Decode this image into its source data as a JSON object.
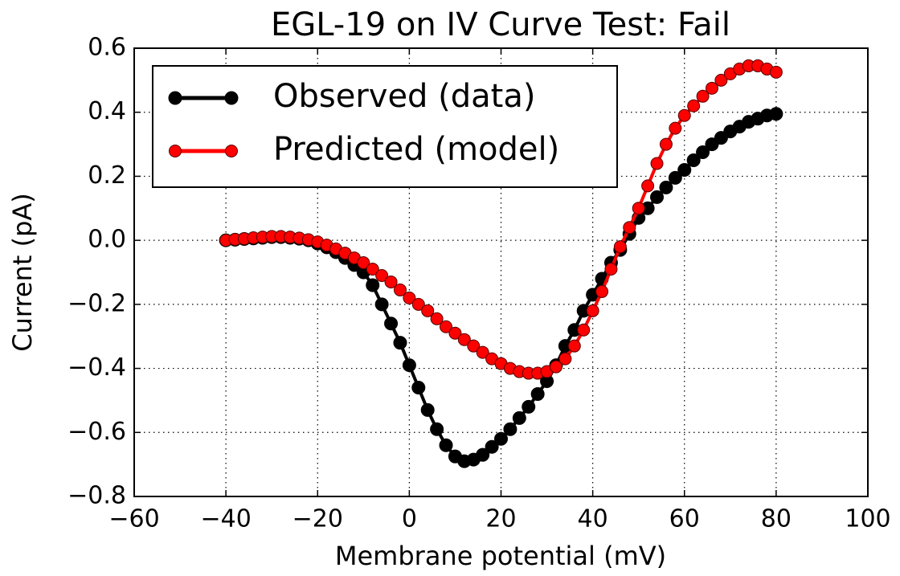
{
  "chart_data": {
    "type": "line",
    "title": "EGL-19 on IV Curve Test: Fail",
    "xlabel": "Membrane potential (mV)",
    "ylabel": "Current (pA)",
    "x": [
      -40,
      -38,
      -36,
      -34,
      -32,
      -30,
      -28,
      -26,
      -24,
      -22,
      -20,
      -18,
      -16,
      -14,
      -12,
      -10,
      -8,
      -6,
      -4,
      -2,
      0,
      2,
      4,
      6,
      8,
      10,
      12,
      14,
      16,
      18,
      20,
      22,
      24,
      26,
      28,
      30,
      32,
      34,
      36,
      38,
      40,
      42,
      44,
      46,
      48,
      50,
      52,
      54,
      56,
      58,
      60,
      62,
      64,
      66,
      68,
      70,
      72,
      74,
      76,
      78,
      80
    ],
    "series": [
      {
        "name": "Observed (data)",
        "color": "#000000",
        "values": [
          0,
          0.002,
          0.004,
          0.006,
          0.008,
          0.01,
          0.01,
          0.008,
          0.005,
          0,
          -0.01,
          -0.022,
          -0.037,
          -0.055,
          -0.077,
          -0.1,
          -0.14,
          -0.2,
          -0.26,
          -0.32,
          -0.39,
          -0.46,
          -0.53,
          -0.59,
          -0.64,
          -0.675,
          -0.69,
          -0.685,
          -0.67,
          -0.645,
          -0.62,
          -0.59,
          -0.555,
          -0.52,
          -0.48,
          -0.44,
          -0.39,
          -0.33,
          -0.28,
          -0.22,
          -0.17,
          -0.12,
          -0.07,
          -0.03,
          0.02,
          0.07,
          0.1,
          0.135,
          0.165,
          0.195,
          0.22,
          0.25,
          0.275,
          0.3,
          0.32,
          0.34,
          0.355,
          0.37,
          0.38,
          0.39,
          0.395
        ]
      },
      {
        "name": "Predicted (model)",
        "color": "#ff0000",
        "values": [
          0,
          0.003,
          0.005,
          0.008,
          0.01,
          0.012,
          0.012,
          0.01,
          0.007,
          0.002,
          -0.005,
          -0.015,
          -0.027,
          -0.04,
          -0.055,
          -0.07,
          -0.09,
          -0.11,
          -0.13,
          -0.155,
          -0.18,
          -0.2,
          -0.22,
          -0.245,
          -0.27,
          -0.29,
          -0.31,
          -0.33,
          -0.35,
          -0.37,
          -0.385,
          -0.4,
          -0.41,
          -0.415,
          -0.415,
          -0.41,
          -0.395,
          -0.37,
          -0.33,
          -0.28,
          -0.22,
          -0.16,
          -0.09,
          -0.02,
          0.04,
          0.1,
          0.17,
          0.24,
          0.3,
          0.35,
          0.39,
          0.42,
          0.45,
          0.475,
          0.5,
          0.52,
          0.535,
          0.545,
          0.545,
          0.535,
          0.525
        ]
      }
    ],
    "xlim": [
      -60,
      100
    ],
    "xticks": [
      {
        "value": -60,
        "label": "−60"
      },
      {
        "value": -40,
        "label": "−40"
      },
      {
        "value": -20,
        "label": "−20"
      },
      0,
      20,
      40,
      60,
      80,
      100
    ],
    "ylim": [
      -0.8,
      0.6
    ],
    "yticks": [
      {
        "value": -0.8,
        "label": "−0.8"
      },
      {
        "value": -0.6,
        "label": "−0.6"
      },
      {
        "value": -0.4,
        "label": "−0.4"
      },
      {
        "value": -0.2,
        "label": "−0.2"
      },
      {
        "value": 0,
        "label": "0.0"
      },
      0.2,
      0.4,
      0.6
    ],
    "grid": true,
    "legend": "upper left"
  }
}
